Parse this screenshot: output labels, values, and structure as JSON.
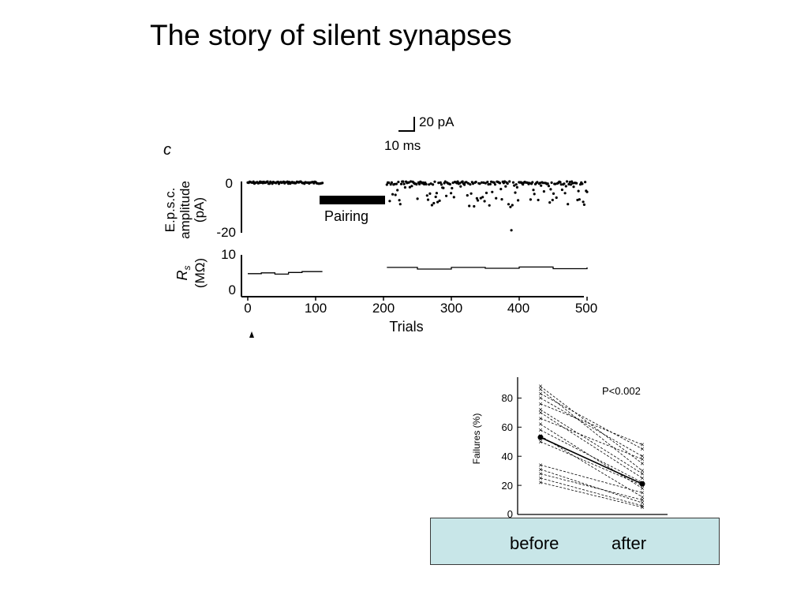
{
  "slide": {
    "title": "The story of silent synapses"
  },
  "figure_c": {
    "panel_letter": "c",
    "scale_bar_current": "20 pA",
    "scale_bar_time": "10 ms",
    "epsc_axis_label_lines": [
      "E.p.s.c.",
      "amplitude",
      "(pA)"
    ],
    "epsc_ticks": [
      "0",
      "-20"
    ],
    "pairing_label": "Pairing",
    "rs_axis_label_symbol": "R",
    "rs_axis_label_sub": "s",
    "rs_axis_label_unit": "(MΩ)",
    "rs_ticks": [
      "10",
      "0"
    ],
    "x_ticks": [
      "0",
      "100",
      "200",
      "300",
      "400",
      "500"
    ],
    "x_label": "Trials"
  },
  "chart_data": [
    {
      "type": "scatter",
      "xlabel": "Trials",
      "ylabel": "E.p.s.c. amplitude (pA)",
      "xlim": [
        0,
        500
      ],
      "ylim": [
        -20,
        0
      ],
      "annotation": "Pairing",
      "pairing_window": [
        110,
        205
      ],
      "series": [
        {
          "x": [
            0,
            110
          ],
          "y_range": [
            -1,
            0
          ]
        },
        {
          "x": [
            205,
            500
          ],
          "y_range": [
            -19,
            0
          ]
        }
      ]
    },
    {
      "type": "line",
      "xlabel": "Trials",
      "ylabel": "Rs (MΩ)",
      "xlim": [
        0,
        500
      ],
      "ylim": [
        0,
        10
      ],
      "series": [
        {
          "x": [
            0,
            20,
            40,
            60,
            80,
            110
          ],
          "y": [
            5.5,
            5.7,
            5.4,
            5.8,
            6.0,
            6.0
          ]
        },
        {
          "x": [
            205,
            250,
            300,
            350,
            400,
            450,
            500
          ],
          "y": [
            7.0,
            6.6,
            7.0,
            6.8,
            7.1,
            6.7,
            7.0
          ]
        }
      ]
    },
    {
      "type": "line",
      "title": "",
      "annotation": "P<0.002",
      "ylabel": "Failures (%)",
      "categories": [
        "before",
        "after"
      ],
      "ylim": [
        0,
        90
      ],
      "yticks": [
        0,
        20,
        40,
        60,
        80
      ],
      "series": [
        {
          "values": [
            88,
            35
          ]
        },
        {
          "values": [
            86,
            30
          ]
        },
        {
          "values": [
            83,
            45
          ]
        },
        {
          "values": [
            80,
            40
          ]
        },
        {
          "values": [
            76,
            48
          ]
        },
        {
          "values": [
            72,
            28
          ]
        },
        {
          "values": [
            70,
            25
          ]
        },
        {
          "values": [
            66,
            38
          ]
        },
        {
          "values": [
            62,
            18
          ]
        },
        {
          "values": [
            58,
            22
          ]
        },
        {
          "values": [
            54,
            12
          ]
        },
        {
          "values": [
            50,
            20
          ]
        },
        {
          "values": [
            34,
            15
          ]
        },
        {
          "values": [
            31,
            8
          ]
        },
        {
          "values": [
            28,
            10
          ]
        },
        {
          "values": [
            25,
            6
          ]
        },
        {
          "values": [
            22,
            5
          ]
        },
        {
          "values": [
            53,
            21
          ]
        }
      ]
    }
  ],
  "figure_failures": {
    "y_label": "Failures (%)",
    "y_ticks": [
      "80",
      "60",
      "40",
      "20",
      "0"
    ],
    "p_value": "P<0.002"
  },
  "conditions": {
    "before_label": "before",
    "after_label": "after",
    "box_color": "#c8e6e8"
  }
}
